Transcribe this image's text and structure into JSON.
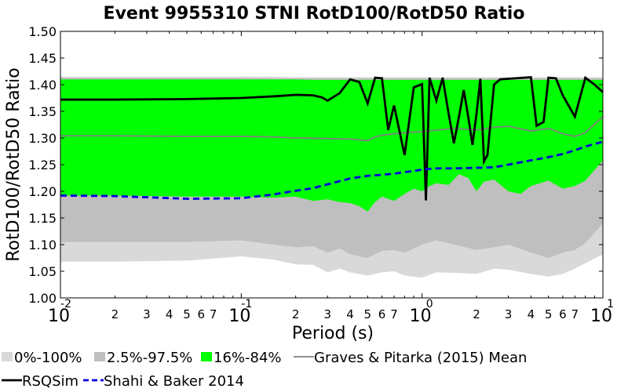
{
  "chart_data": {
    "type": "area",
    "title": "Event 9955310 STNI RotD100/RotD50 Ratio",
    "xlabel": "Period (s)",
    "ylabel": "RotD100/RotD50 Ratio",
    "xscale": "log",
    "xlim": [
      0.01,
      10
    ],
    "ylim": [
      1.0,
      1.5
    ],
    "yticks": [
      "1.00",
      "1.05",
      "1.10",
      "1.15",
      "1.20",
      "1.25",
      "1.30",
      "1.35",
      "1.40",
      "1.45",
      "1.50"
    ],
    "xmajor_ticks": [
      {
        "base": "10",
        "exp": "-2"
      },
      {
        "base": "10",
        "exp": "-1"
      },
      {
        "base": "10",
        "exp": "0"
      },
      {
        "base": "10",
        "exp": "1"
      }
    ],
    "xminor_labels": [
      "2",
      "3",
      "4",
      "5",
      "6",
      "7"
    ],
    "grid": false,
    "legend_position": "bottom",
    "colors": {
      "band_0_100": "#d9d9d9",
      "band_2_5_97_5": "#bfbfbf",
      "band_16_84": "#00ff00",
      "gp_mean": "#808080",
      "rsqsim": "#000000",
      "shahi_baker": "#0000dd"
    },
    "series": [
      {
        "name": "0%-100%",
        "kind": "band",
        "x": [
          0.01,
          0.02,
          0.05,
          0.1,
          0.15,
          0.2,
          0.25,
          0.3,
          0.35,
          0.4,
          0.5,
          0.6,
          0.7,
          0.8,
          1.0,
          1.2,
          1.5,
          2.0,
          2.5,
          3.0,
          4.0,
          5.0,
          6.0,
          7.0,
          8.0,
          10.0
        ],
        "lower": [
          1.068,
          1.068,
          1.07,
          1.078,
          1.072,
          1.063,
          1.062,
          1.048,
          1.055,
          1.048,
          1.042,
          1.048,
          1.05,
          1.042,
          1.038,
          1.048,
          1.047,
          1.045,
          1.055,
          1.053,
          1.045,
          1.04,
          1.045,
          1.055,
          1.065,
          1.082
        ],
        "upper": [
          1.415,
          1.415,
          1.415,
          1.415,
          1.415,
          1.414,
          1.414,
          1.414,
          1.414,
          1.414,
          1.414,
          1.414,
          1.414,
          1.414,
          1.414,
          1.414,
          1.414,
          1.414,
          1.414,
          1.414,
          1.414,
          1.414,
          1.414,
          1.414,
          1.414,
          1.414
        ]
      },
      {
        "name": "2.5%-97.5%",
        "kind": "band",
        "x": [
          0.01,
          0.02,
          0.05,
          0.1,
          0.15,
          0.2,
          0.25,
          0.3,
          0.35,
          0.4,
          0.5,
          0.6,
          0.7,
          0.8,
          1.0,
          1.2,
          1.5,
          2.0,
          2.5,
          3.0,
          4.0,
          5.0,
          6.0,
          7.0,
          8.0,
          10.0
        ],
        "lower": [
          1.105,
          1.105,
          1.105,
          1.108,
          1.1,
          1.095,
          1.097,
          1.085,
          1.093,
          1.082,
          1.075,
          1.088,
          1.09,
          1.085,
          1.1,
          1.108,
          1.1,
          1.09,
          1.095,
          1.1,
          1.085,
          1.075,
          1.085,
          1.09,
          1.103,
          1.14
        ],
        "upper": [
          1.413,
          1.413,
          1.413,
          1.413,
          1.412,
          1.412,
          1.412,
          1.412,
          1.412,
          1.412,
          1.412,
          1.412,
          1.412,
          1.412,
          1.412,
          1.412,
          1.412,
          1.412,
          1.412,
          1.412,
          1.412,
          1.412,
          1.412,
          1.412,
          1.412,
          1.412
        ]
      },
      {
        "name": "16%-84%",
        "kind": "band",
        "x": [
          0.01,
          0.02,
          0.05,
          0.1,
          0.15,
          0.2,
          0.25,
          0.3,
          0.35,
          0.4,
          0.45,
          0.5,
          0.55,
          0.6,
          0.7,
          0.8,
          0.9,
          1.0,
          1.1,
          1.2,
          1.4,
          1.6,
          1.8,
          2.0,
          2.2,
          2.5,
          3.0,
          3.5,
          4.0,
          5.0,
          6.0,
          7.0,
          8.0,
          10.0
        ],
        "lower": [
          1.192,
          1.192,
          1.19,
          1.19,
          1.188,
          1.19,
          1.182,
          1.185,
          1.18,
          1.178,
          1.172,
          1.162,
          1.18,
          1.19,
          1.182,
          1.195,
          1.205,
          1.2,
          1.21,
          1.215,
          1.212,
          1.232,
          1.225,
          1.2,
          1.218,
          1.222,
          1.2,
          1.195,
          1.21,
          1.22,
          1.205,
          1.21,
          1.22,
          1.258
        ],
        "upper": [
          1.41,
          1.41,
          1.41,
          1.41,
          1.41,
          1.41,
          1.409,
          1.409,
          1.409,
          1.409,
          1.409,
          1.409,
          1.409,
          1.409,
          1.409,
          1.409,
          1.409,
          1.409,
          1.409,
          1.409,
          1.409,
          1.409,
          1.409,
          1.409,
          1.409,
          1.409,
          1.409,
          1.409,
          1.409,
          1.409,
          1.409,
          1.409,
          1.409,
          1.409
        ]
      },
      {
        "name": "Graves & Pitarka (2015) Mean",
        "kind": "line",
        "x": [
          0.01,
          0.02,
          0.05,
          0.1,
          0.15,
          0.2,
          0.3,
          0.4,
          0.5,
          0.55,
          0.6,
          0.7,
          0.8,
          1.0,
          1.5,
          2.0,
          2.5,
          3.0,
          4.0,
          5.0,
          6.0,
          7.0,
          8.0,
          10.0
        ],
        "y": [
          1.304,
          1.304,
          1.303,
          1.303,
          1.302,
          1.3,
          1.299,
          1.298,
          1.295,
          1.302,
          1.305,
          1.308,
          1.31,
          1.312,
          1.318,
          1.315,
          1.32,
          1.322,
          1.313,
          1.318,
          1.308,
          1.303,
          1.31,
          1.34
        ]
      },
      {
        "name": "RSQSim",
        "kind": "line",
        "x": [
          0.01,
          0.02,
          0.05,
          0.1,
          0.15,
          0.2,
          0.25,
          0.28,
          0.3,
          0.35,
          0.4,
          0.45,
          0.5,
          0.55,
          0.6,
          0.65,
          0.7,
          0.8,
          0.9,
          1.0,
          1.05,
          1.1,
          1.2,
          1.3,
          1.4,
          1.5,
          1.6,
          1.7,
          1.8,
          1.9,
          2.0,
          2.1,
          2.2,
          2.3,
          2.5,
          2.7,
          3.0,
          4.0,
          4.3,
          4.7,
          5.0,
          5.5,
          6.0,
          7.0,
          8.0,
          9.0,
          10.0
        ],
        "y": [
          1.372,
          1.372,
          1.373,
          1.375,
          1.378,
          1.381,
          1.38,
          1.376,
          1.37,
          1.384,
          1.41,
          1.405,
          1.365,
          1.413,
          1.412,
          1.315,
          1.361,
          1.268,
          1.395,
          1.401,
          1.183,
          1.413,
          1.37,
          1.413,
          1.347,
          1.29,
          1.34,
          1.39,
          1.34,
          1.287,
          1.345,
          1.411,
          1.256,
          1.268,
          1.4,
          1.41,
          1.411,
          1.414,
          1.323,
          1.33,
          1.413,
          1.412,
          1.38,
          1.34,
          1.413,
          1.4,
          1.386
        ]
      },
      {
        "name": "Shahi & Baker 2014",
        "kind": "line",
        "x": [
          0.01,
          0.02,
          0.05,
          0.1,
          0.15,
          0.2,
          0.25,
          0.3,
          0.35,
          0.4,
          0.5,
          0.6,
          0.7,
          0.8,
          0.9,
          1.0,
          1.2,
          1.5,
          2.0,
          2.5,
          3.0,
          4.0,
          5.0,
          6.0,
          7.0,
          8.0,
          10.0
        ],
        "y": [
          1.192,
          1.191,
          1.186,
          1.187,
          1.194,
          1.201,
          1.206,
          1.213,
          1.219,
          1.224,
          1.229,
          1.231,
          1.233,
          1.236,
          1.238,
          1.241,
          1.243,
          1.243,
          1.244,
          1.245,
          1.25,
          1.258,
          1.264,
          1.27,
          1.277,
          1.284,
          1.293
        ]
      }
    ]
  }
}
